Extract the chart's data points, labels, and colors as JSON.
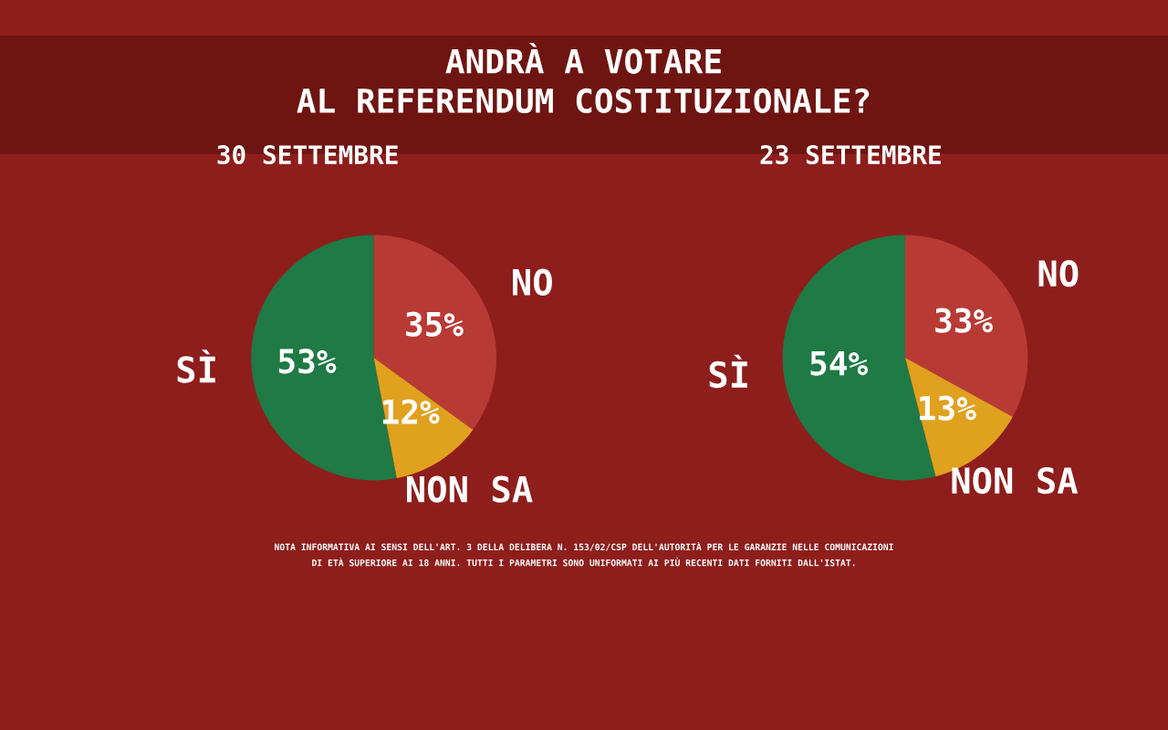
{
  "chart_data": [
    {
      "type": "pie",
      "title": "ANDRÀ A VOTARE\nAL REFERENDUM COSTITUZIONALE?",
      "subtitle": "30 SETTEMBRE",
      "categories": [
        "SÌ",
        "NO",
        "NON SA"
      ],
      "values": [
        53,
        35,
        12
      ],
      "value_labels": [
        "53%",
        "35%",
        "12%"
      ],
      "colors": [
        "#1f7a45",
        "#b83a35",
        "#e0a11f"
      ],
      "legend": false,
      "annotations": [
        "NOTA INFORMATIVA AI SENSI DELL'ART. 3 DELLA DELIBERA N. 153/02/CSP DELL'AUTORITÀ PER LE GARANZIE NELLE COMUNICAZIONI",
        "DI ETÀ SUPERIORE AI 18 ANNI. TUTTI I PARAMETRI SONO UNIFORMATI AI PIÙ RECENTI DATI FORNITI DALL'ISTAT."
      ]
    },
    {
      "type": "pie",
      "subtitle": "23 SETTEMBRE",
      "categories": [
        "SÌ",
        "NO",
        "NON SA"
      ],
      "values": [
        54,
        33,
        13
      ],
      "value_labels": [
        "54%",
        "33%",
        "13%"
      ],
      "colors": [
        "#1f7a45",
        "#b83a35",
        "#e0a11f"
      ],
      "legend": false
    }
  ]
}
